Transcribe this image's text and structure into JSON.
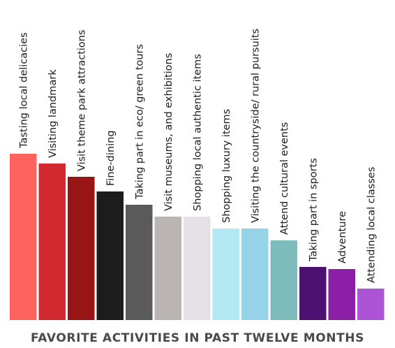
{
  "chart_data": {
    "type": "bar",
    "title": "FAVORITE ACTIVITIES IN PAST TWELVE MONTHS",
    "xlabel": "",
    "ylabel": "",
    "categories": [
      "Tasting local delicacies",
      "Visiting landmark",
      "Visit theme park attractions",
      "Fine-dining",
      "Taking part in eco/ green tours",
      "Visit museums, and exhibitions",
      "Shopping local authentic items",
      "Shopping luxury items",
      "Visiting the countryside/ rural pursuits",
      "Attend cultural events",
      "Taking part in sports",
      "Adventure",
      "Attending local classes"
    ],
    "values": [
      238,
      224,
      205,
      184,
      165,
      148,
      148,
      131,
      131,
      114,
      76,
      73,
      45
    ],
    "ylim": [
      0,
      250
    ],
    "grid": false,
    "legend": "none",
    "colors": [
      "#ff6360",
      "#d12a30",
      "#991415",
      "#1c1c1c",
      "#5a5a5a",
      "#bbb6b3",
      "#e5e1e6",
      "#b3e9f2",
      "#96d3e8",
      "#7fbcbd",
      "#4c1170",
      "#8b1fa6",
      "#ad54d6"
    ]
  }
}
